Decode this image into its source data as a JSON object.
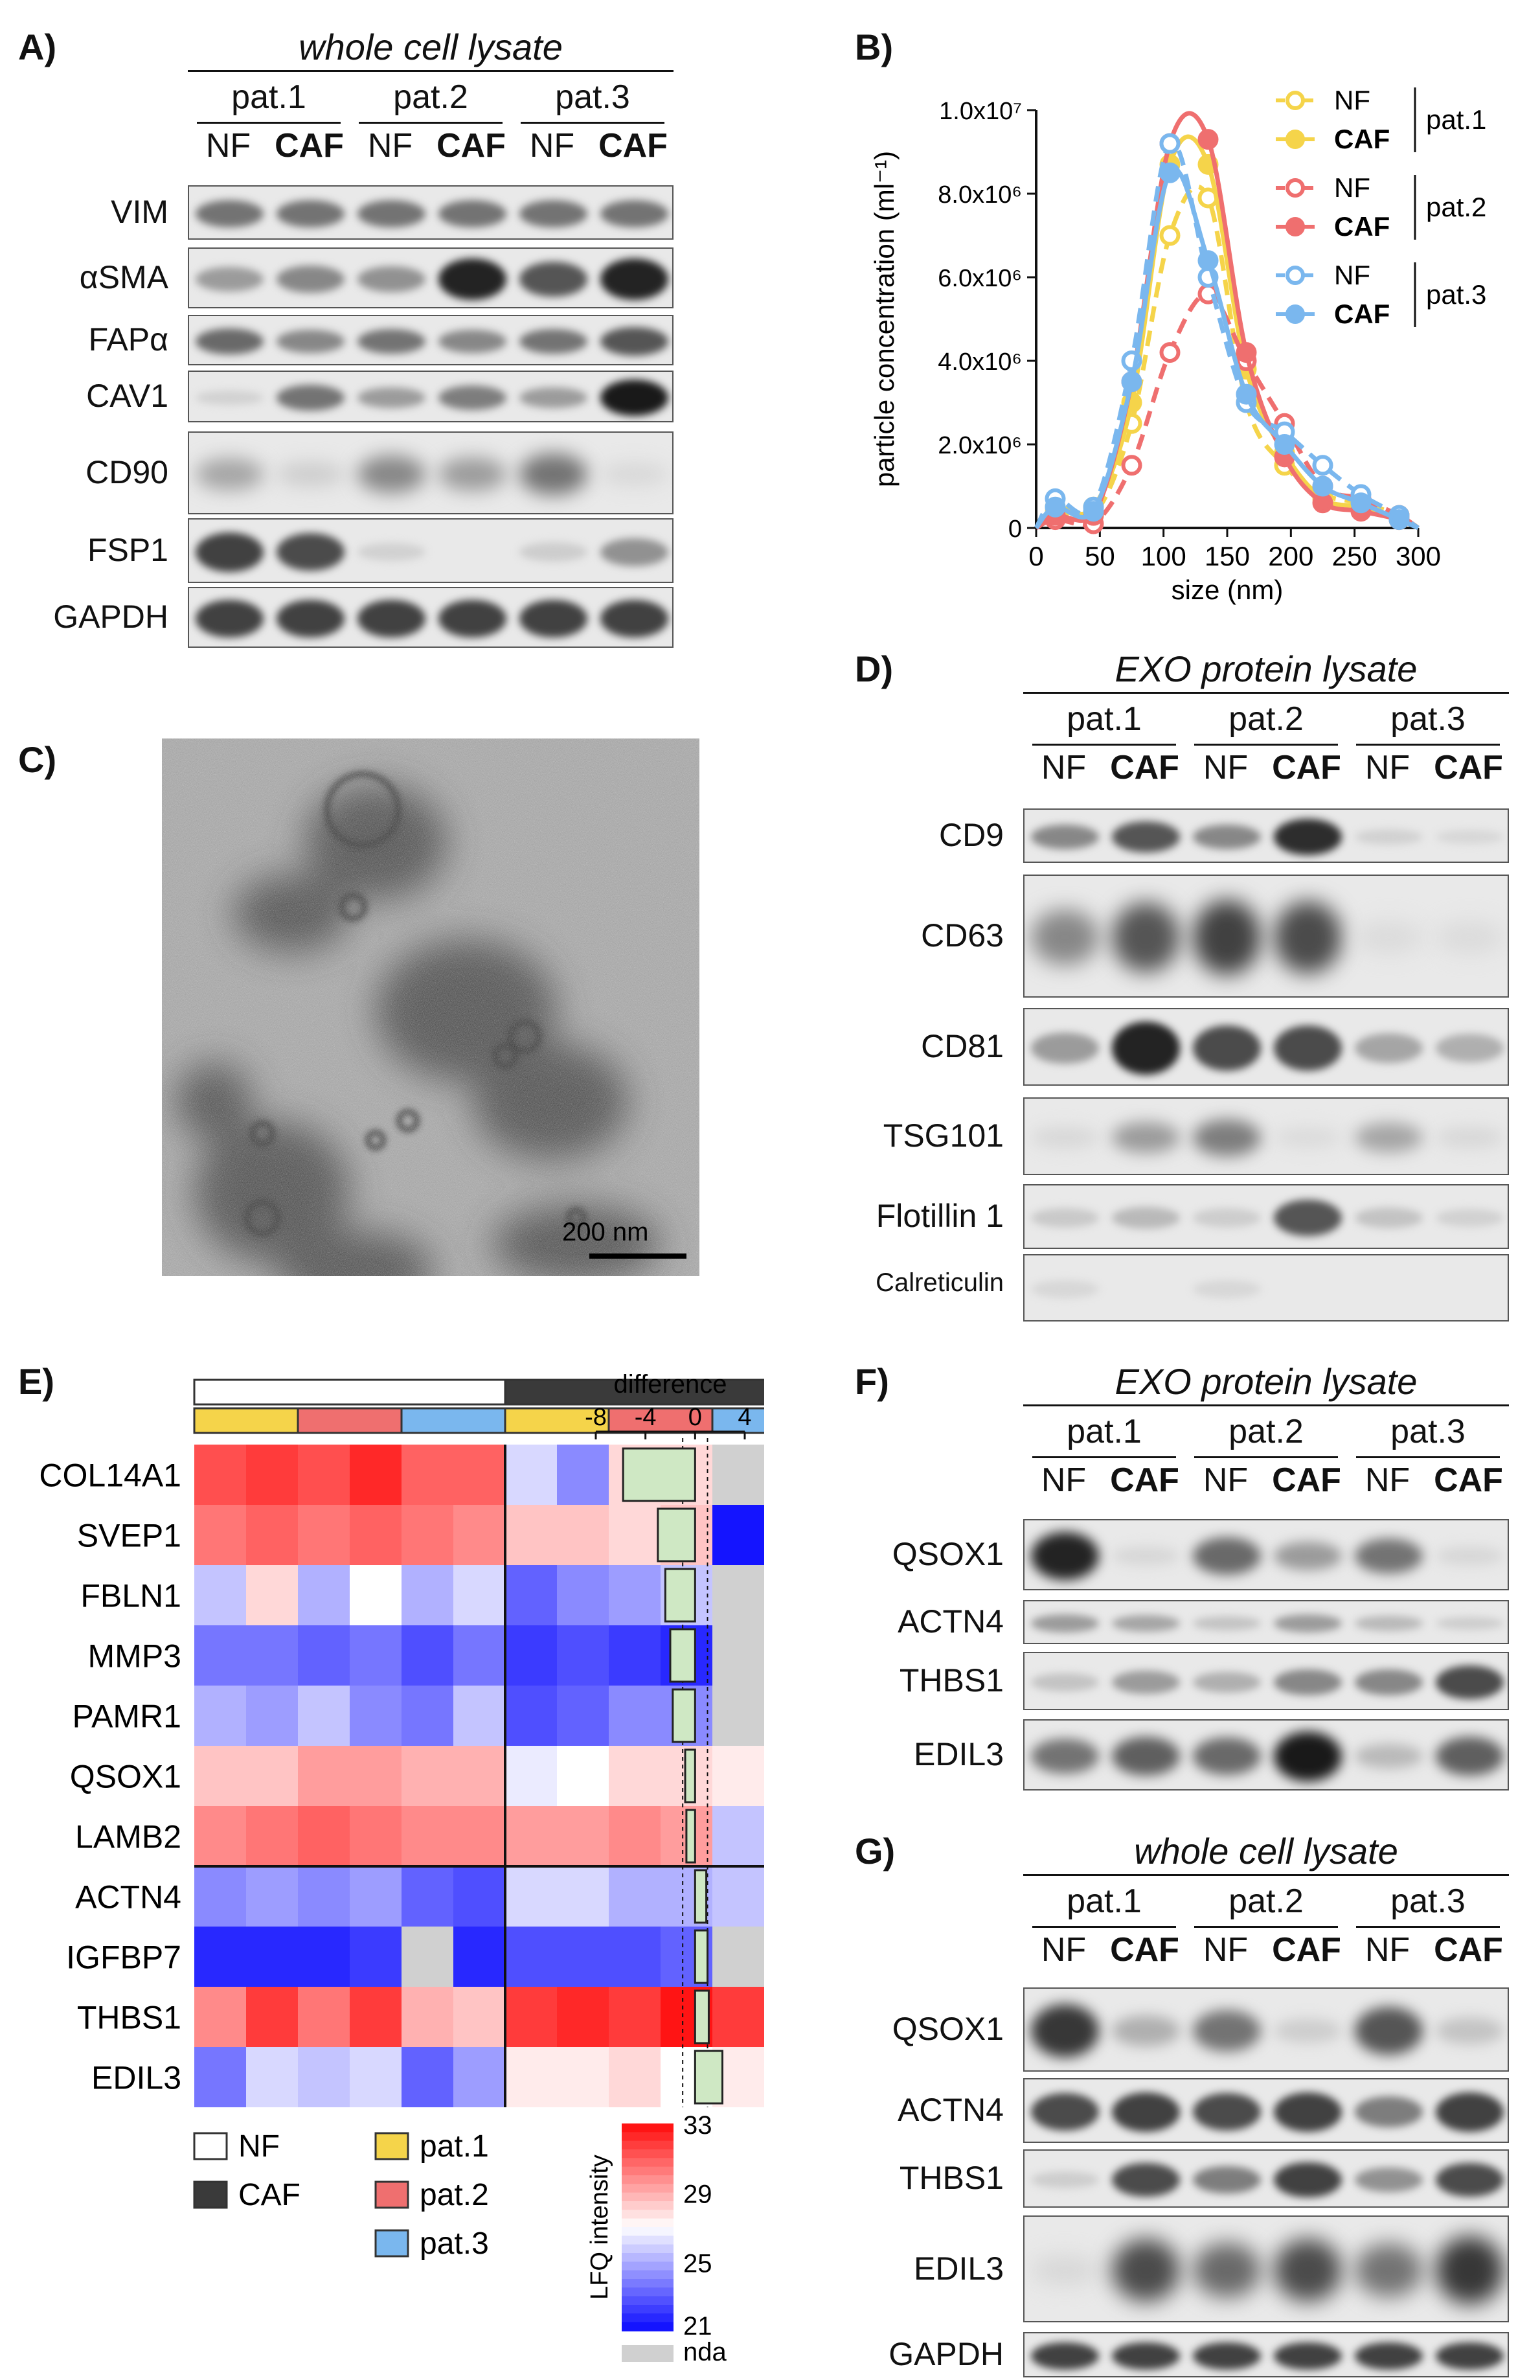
{
  "panels": {
    "A": "A)",
    "B": "B)",
    "C": "C)",
    "D": "D)",
    "E": "E)",
    "F": "F)",
    "G": "G)"
  },
  "headers": {
    "A": "whole cell lysate",
    "D": "EXO protein lysate",
    "F": "EXO protein lysate",
    "G": "whole cell lysate"
  },
  "patients": [
    "pat.1",
    "pat.2",
    "pat.3"
  ],
  "lanes": [
    "NF",
    "CAF",
    "NF",
    "CAF",
    "NF",
    "CAF"
  ],
  "blot_A": {
    "rows": [
      {
        "label": "VIM",
        "intensity": [
          0.55,
          0.55,
          0.55,
          0.55,
          0.55,
          0.55
        ]
      },
      {
        "label": "αSMA",
        "intensity": [
          0.35,
          0.45,
          0.4,
          0.95,
          0.7,
          0.95
        ]
      },
      {
        "label": "FAPα",
        "intensity": [
          0.6,
          0.45,
          0.55,
          0.45,
          0.55,
          0.7
        ]
      },
      {
        "label": "CAV1",
        "intensity": [
          0.08,
          0.55,
          0.35,
          0.5,
          0.35,
          1.0
        ]
      },
      {
        "label": "CD90",
        "intensity": [
          0.3,
          0.1,
          0.45,
          0.35,
          0.55,
          0.05
        ]
      },
      {
        "label": "FSP1",
        "intensity": [
          0.8,
          0.75,
          0.08,
          0.0,
          0.1,
          0.4
        ]
      },
      {
        "label": "GAPDH",
        "intensity": [
          0.8,
          0.8,
          0.8,
          0.8,
          0.8,
          0.8
        ]
      }
    ]
  },
  "blot_D": {
    "rows": [
      {
        "label": "CD9",
        "intensity": [
          0.45,
          0.7,
          0.45,
          0.9,
          0.08,
          0.05
        ]
      },
      {
        "label": "CD63",
        "intensity": [
          0.45,
          0.7,
          0.8,
          0.75,
          0.03,
          0.03
        ]
      },
      {
        "label": "CD81",
        "intensity": [
          0.35,
          0.95,
          0.75,
          0.75,
          0.3,
          0.25
        ]
      },
      {
        "label": "TSG101",
        "intensity": [
          0.05,
          0.35,
          0.5,
          0.03,
          0.3,
          0.05
        ]
      },
      {
        "label": "Flotillin 1",
        "intensity": [
          0.12,
          0.2,
          0.1,
          0.7,
          0.15,
          0.08
        ]
      },
      {
        "label": "Calreticulin",
        "intensity": [
          0.05,
          0.0,
          0.05,
          0.0,
          0.0,
          0.0
        ]
      }
    ]
  },
  "blot_F": {
    "rows": [
      {
        "label": "QSOX1",
        "intensity": [
          0.95,
          0.05,
          0.6,
          0.35,
          0.55,
          0.05
        ]
      },
      {
        "label": "ACTN4",
        "intensity": [
          0.35,
          0.3,
          0.15,
          0.35,
          0.2,
          0.1
        ]
      },
      {
        "label": "THBS1",
        "intensity": [
          0.15,
          0.35,
          0.25,
          0.45,
          0.45,
          0.75
        ]
      },
      {
        "label": "EDIL3",
        "intensity": [
          0.55,
          0.65,
          0.6,
          1.0,
          0.2,
          0.65
        ]
      }
    ]
  },
  "blot_G": {
    "rows": [
      {
        "label": "QSOX1",
        "intensity": [
          0.85,
          0.25,
          0.55,
          0.1,
          0.7,
          0.15
        ]
      },
      {
        "label": "ACTN4",
        "intensity": [
          0.75,
          0.8,
          0.75,
          0.8,
          0.5,
          0.8
        ]
      },
      {
        "label": "THBS1",
        "intensity": [
          0.1,
          0.75,
          0.5,
          0.8,
          0.4,
          0.75
        ]
      },
      {
        "label": "EDIL3",
        "intensity": [
          0.05,
          0.75,
          0.6,
          0.75,
          0.55,
          0.85
        ]
      },
      {
        "label": "GAPDH",
        "intensity": [
          0.8,
          0.8,
          0.8,
          0.8,
          0.8,
          0.8
        ]
      }
    ]
  },
  "tem": {
    "scale_label": "200 nm"
  },
  "chart_data": [
    {
      "type": "line",
      "panel": "B",
      "xlabel": "size (nm)",
      "ylabel": "particle concentration (ml⁻¹)",
      "xlim": [
        0,
        300
      ],
      "ylim": [
        0,
        10000000
      ],
      "xticks": [
        "0",
        "50",
        "100",
        "150",
        "200",
        "250",
        "300"
      ],
      "yticks": [
        "0",
        "2.0x10⁶",
        "4.0x10⁶",
        "6.0x10⁶",
        "8.0x10⁶",
        "1.0x10⁷"
      ],
      "x": [
        15,
        45,
        75,
        105,
        135,
        165,
        195,
        225,
        255,
        285
      ],
      "legend_groups": [
        "pat.1",
        "pat.2",
        "pat.3"
      ],
      "series": [
        {
          "name": "NF",
          "group": "pat.1",
          "color": "#f5d44a",
          "dashed": true,
          "values": [
            400000,
            300000,
            2500000,
            7000000,
            7900000,
            3000000,
            1500000,
            800000,
            600000,
            300000
          ]
        },
        {
          "name": "CAF",
          "group": "pat.1",
          "color": "#f5d44a",
          "dashed": false,
          "values": [
            500000,
            500000,
            3000000,
            8700000,
            8700000,
            3800000,
            1800000,
            700000,
            500000,
            200000
          ]
        },
        {
          "name": "NF",
          "group": "pat.2",
          "color": "#ef6f6f",
          "dashed": true,
          "values": [
            200000,
            100000,
            1500000,
            4200000,
            5600000,
            4000000,
            2500000,
            1000000,
            700000,
            300000
          ]
        },
        {
          "name": "CAF",
          "group": "pat.2",
          "color": "#ef6f6f",
          "dashed": false,
          "values": [
            300000,
            300000,
            3500000,
            9200000,
            9300000,
            4200000,
            1700000,
            600000,
            400000,
            200000
          ]
        },
        {
          "name": "NF",
          "group": "pat.3",
          "color": "#7ab7ee",
          "dashed": true,
          "values": [
            700000,
            500000,
            4000000,
            9200000,
            6000000,
            3000000,
            2300000,
            1500000,
            800000,
            300000
          ]
        },
        {
          "name": "CAF",
          "group": "pat.3",
          "color": "#7ab7ee",
          "dashed": false,
          "values": [
            500000,
            400000,
            3500000,
            8500000,
            6400000,
            3200000,
            2000000,
            1000000,
            600000,
            200000
          ]
        }
      ]
    },
    {
      "type": "heatmap",
      "panel": "E",
      "rows": [
        "COL14A1",
        "SVEP1",
        "FBLN1",
        "MMP3",
        "PAMR1",
        "QSOX1",
        "LAMB2",
        "ACTN4",
        "IGFBP7",
        "THBS1",
        "EDIL3"
      ],
      "columns_groups": [
        "NF",
        "NF",
        "NF",
        "NF",
        "NF",
        "NF",
        "CAF",
        "CAF",
        "CAF",
        "CAF",
        "CAF",
        "CAF"
      ],
      "columns_patients": [
        "pat.1",
        "pat.1",
        "pat.2",
        "pat.2",
        "pat.3",
        "pat.3",
        "pat.1",
        "pat.1",
        "pat.2",
        "pat.2",
        "pat.3",
        "pat.3"
      ],
      "values": [
        [
          31.5,
          32.0,
          31.5,
          32.5,
          31.0,
          31.0,
          26.0,
          24.0,
          28.0,
          28.0,
          null,
          null
        ],
        [
          30.5,
          31.0,
          30.5,
          31.0,
          30.5,
          30.0,
          28.5,
          28.5,
          28.0,
          28.5,
          21.0,
          22.5
        ],
        [
          25.5,
          28.0,
          25.0,
          27.0,
          25.0,
          26.0,
          23.0,
          24.0,
          24.5,
          25.5,
          null,
          null
        ],
        [
          23.5,
          23.5,
          23.0,
          23.5,
          22.5,
          23.5,
          22.0,
          22.5,
          22.0,
          21.5,
          null,
          null
        ],
        [
          25.0,
          24.5,
          25.5,
          24.0,
          23.5,
          25.5,
          22.5,
          23.0,
          24.0,
          24.0,
          null,
          null
        ],
        [
          28.5,
          28.5,
          29.5,
          29.5,
          29.0,
          29.0,
          26.5,
          27.0,
          28.0,
          28.0,
          27.5,
          27.0
        ],
        [
          30.0,
          30.5,
          31.0,
          30.5,
          30.0,
          30.0,
          29.5,
          29.5,
          30.0,
          29.5,
          25.5,
          24.5
        ],
        [
          24.0,
          24.5,
          24.0,
          24.5,
          23.0,
          22.5,
          26.0,
          26.0,
          25.0,
          25.0,
          25.5,
          25.5
        ],
        [
          21.5,
          21.5,
          21.5,
          22.0,
          null,
          21.5,
          22.5,
          22.5,
          22.5,
          23.0,
          null,
          22.0
        ],
        [
          30.0,
          32.0,
          30.5,
          32.0,
          29.0,
          28.5,
          32.0,
          32.5,
          32.0,
          33.0,
          32.0,
          33.0
        ],
        [
          23.5,
          26.0,
          25.5,
          26.0,
          23.0,
          24.5,
          27.5,
          27.5,
          28.0,
          27.0,
          27.5,
          27.0
        ]
      ],
      "difference": [
        -5.8,
        -3.0,
        -2.4,
        -2.0,
        -1.8,
        -0.8,
        -0.7,
        0.9,
        1.0,
        1.1,
        2.2
      ],
      "difference_label": "difference",
      "difference_ticks": [
        "-8",
        "-4",
        "0",
        "4"
      ],
      "difference_xlim": [
        -8,
        4
      ],
      "scale_label": "LFQ intensity",
      "scale_ticks": [
        "33",
        "29",
        "25",
        "21"
      ],
      "scale_range": [
        21,
        33
      ],
      "nda_label": "nda",
      "legend_group": [
        "NF",
        "CAF"
      ],
      "legend_patient": [
        "pat.1",
        "pat.2",
        "pat.3"
      ]
    }
  ],
  "colors": {
    "pat1": "#f5d44a",
    "pat2": "#ef6f6f",
    "pat3": "#7ab7ee",
    "nf": "#ffffff",
    "caf": "#3a3a3a",
    "nda": "#d0d0d0"
  }
}
